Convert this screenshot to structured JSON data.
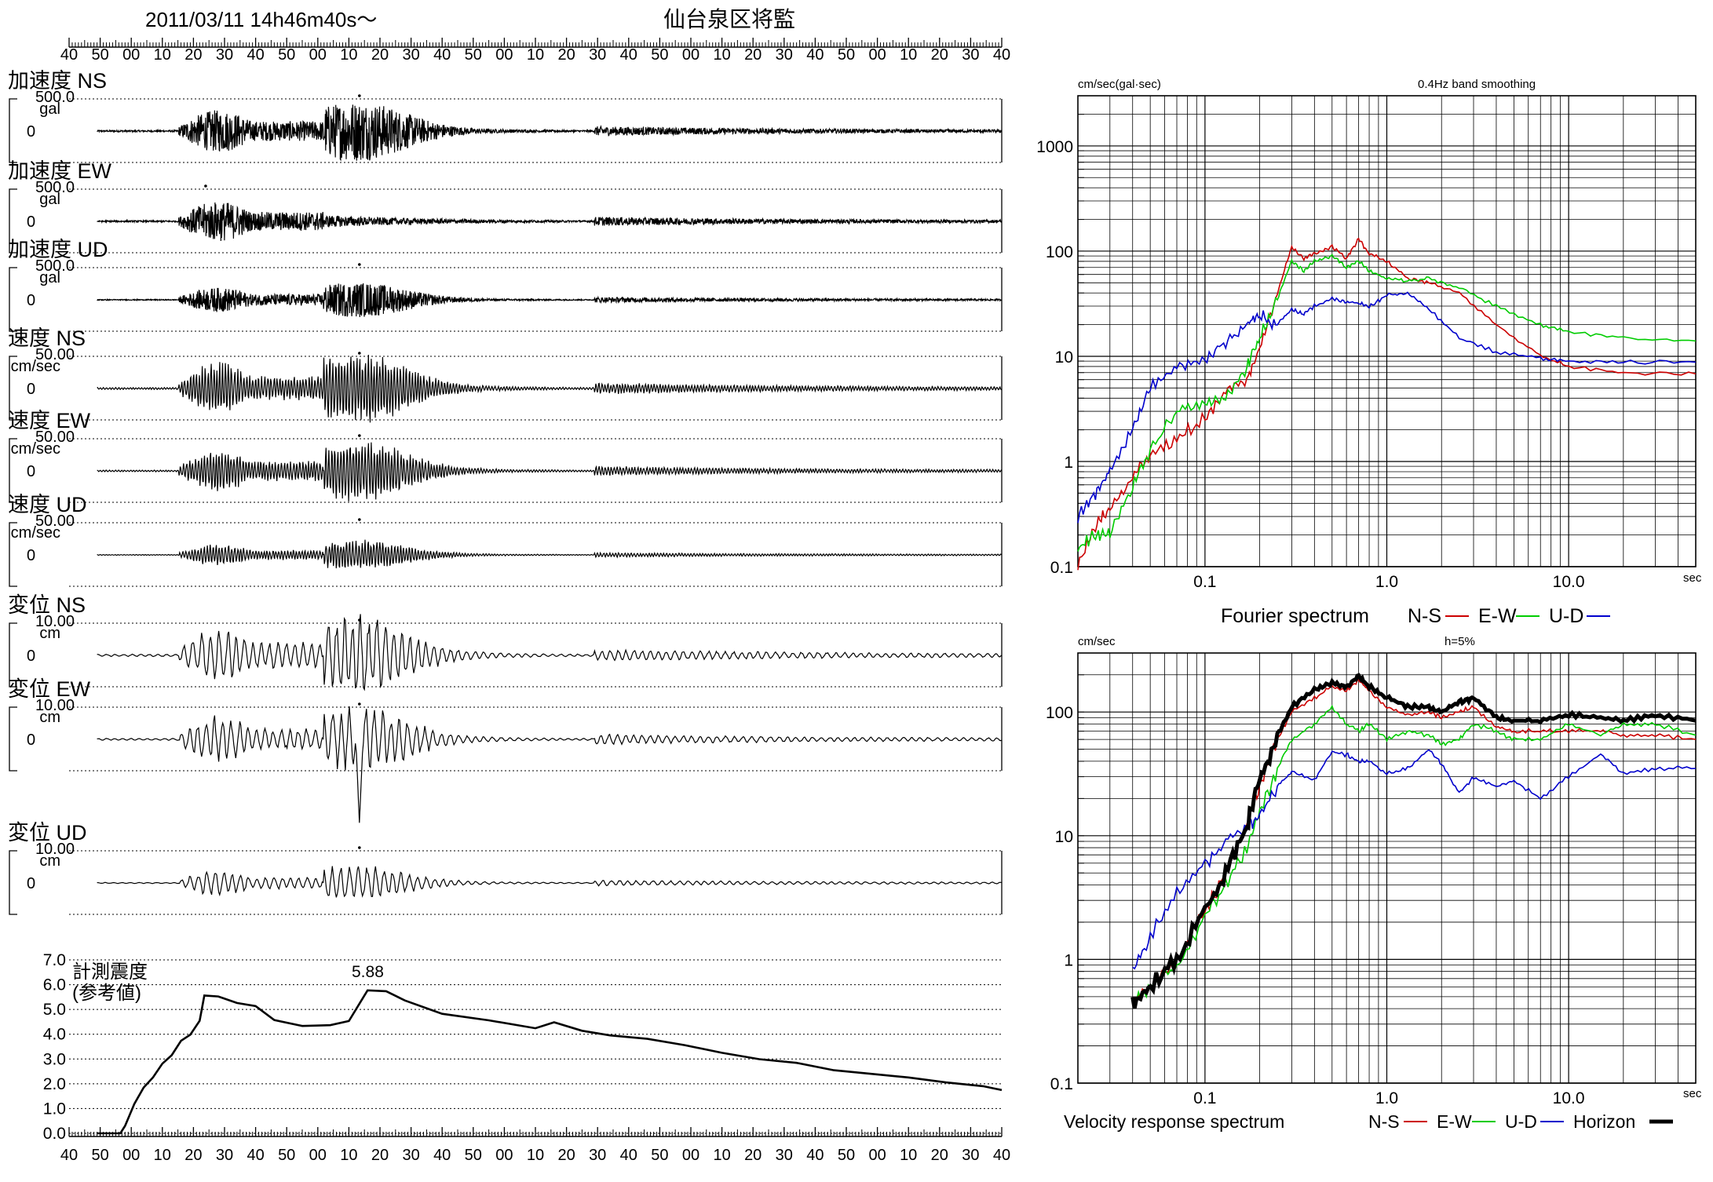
{
  "header": {
    "datetime": "2011/03/11  14h46m40s〜",
    "station": "仙台泉区将監"
  },
  "time_ruler": {
    "labels": [
      "40",
      "50",
      "00",
      "10",
      "20",
      "30",
      "40",
      "50",
      "00",
      "10",
      "20",
      "30",
      "40",
      "50",
      "00",
      "10",
      "20",
      "30",
      "40",
      "50",
      "00",
      "10",
      "20",
      "30",
      "40",
      "50",
      "00",
      "10",
      "20",
      "30",
      "40"
    ]
  },
  "traces": [
    {
      "label": "加速度 NS",
      "scale": "500.0",
      "unit": "gal",
      "zero": "0",
      "amp": 0.95,
      "peak_at": 0.29,
      "pattern": "acc"
    },
    {
      "label": "加速度 EW",
      "scale": "500.0",
      "unit": "gal",
      "zero": "0",
      "amp": 0.9,
      "peak_at": 0.12,
      "pattern": "acc"
    },
    {
      "label": "加速度 UD",
      "scale": "500.0",
      "unit": "gal",
      "zero": "0",
      "amp": 0.55,
      "peak_at": 0.29,
      "pattern": "acc"
    },
    {
      "label": "速度 NS",
      "scale": "50.00",
      "unit": "cm/sec",
      "zero": "0",
      "amp": 1.1,
      "peak_at": 0.29,
      "pattern": "vel"
    },
    {
      "label": "速度 EW",
      "scale": "50.00",
      "unit": "cm/sec",
      "zero": "0",
      "amp": 0.9,
      "peak_at": 0.29,
      "pattern": "vel"
    },
    {
      "label": "速度 UD",
      "scale": "50.00",
      "unit": "cm/sec",
      "zero": "0",
      "amp": 0.45,
      "peak_at": 0.29,
      "pattern": "vel"
    },
    {
      "label": "変位 NS",
      "scale": "10.00",
      "unit": "cm",
      "zero": "0",
      "amp": 1.2,
      "peak_at": 0.29,
      "pattern": "disp"
    },
    {
      "label": "変位 EW",
      "scale": "10.00",
      "unit": "cm",
      "zero": "0",
      "amp": 1.0,
      "peak_at": 0.29,
      "pattern": "disp",
      "spike": -2.8
    },
    {
      "label": "変位 UD",
      "scale": "10.00",
      "unit": "cm",
      "zero": "0",
      "amp": 0.55,
      "peak_at": 0.29,
      "pattern": "disp"
    }
  ],
  "intensity": {
    "title_line1": "計測震度",
    "title_line2": "(参考値)",
    "peak_label": "5.88",
    "y_ticks": [
      "7.0",
      "6.0",
      "5.0",
      "4.0",
      "3.0",
      "2.0",
      "1.0",
      "0.0"
    ],
    "ylim": [
      0,
      7
    ]
  },
  "chart_data": [
    {
      "type": "line",
      "title": "0.4Hz band smoothing",
      "ylabel": "cm/sec(gal·sec)",
      "xlabel": "sec",
      "x_scale": "log",
      "y_scale": "log",
      "xlim": [
        0.02,
        50
      ],
      "ylim": [
        0.1,
        3000
      ],
      "x_tick_labels": [
        "0.1",
        "1.0",
        "10.0"
      ],
      "y_tick_labels": [
        "1000",
        "100",
        "10",
        "1",
        "0.1"
      ],
      "caption": "Fourier spectrum",
      "legend": [
        "N-S",
        "E-W",
        "U-D"
      ],
      "series": [
        {
          "name": "N-S",
          "color": "#cc0000",
          "x": [
            0.02,
            0.025,
            0.03,
            0.04,
            0.05,
            0.07,
            0.1,
            0.13,
            0.17,
            0.2,
            0.25,
            0.3,
            0.35,
            0.4,
            0.5,
            0.6,
            0.7,
            0.8,
            1.0,
            1.3,
            1.7,
            2.5,
            4,
            7,
            10,
            20,
            50
          ],
          "y": [
            0.1,
            0.25,
            0.35,
            0.7,
            1.2,
            1.6,
            2.6,
            4.5,
            6,
            12,
            40,
            110,
            85,
            95,
            110,
            85,
            130,
            95,
            80,
            55,
            50,
            40,
            20,
            10,
            8,
            7,
            6.8
          ]
        },
        {
          "name": "E-W",
          "color": "#00cc00",
          "x": [
            0.02,
            0.025,
            0.03,
            0.04,
            0.05,
            0.07,
            0.1,
            0.13,
            0.17,
            0.2,
            0.25,
            0.3,
            0.35,
            0.4,
            0.5,
            0.6,
            0.7,
            0.8,
            1.0,
            1.3,
            1.7,
            2.5,
            4,
            7,
            10,
            20,
            50
          ],
          "y": [
            0.15,
            0.2,
            0.2,
            0.6,
            1.3,
            3,
            3.5,
            4,
            8,
            15,
            35,
            80,
            65,
            80,
            90,
            70,
            80,
            65,
            55,
            52,
            55,
            45,
            30,
            20,
            17,
            15,
            14
          ]
        },
        {
          "name": "U-D",
          "color": "#0000cc",
          "x": [
            0.02,
            0.025,
            0.03,
            0.04,
            0.05,
            0.07,
            0.1,
            0.13,
            0.17,
            0.2,
            0.25,
            0.3,
            0.35,
            0.4,
            0.5,
            0.6,
            0.7,
            0.8,
            1.0,
            1.3,
            1.7,
            2.5,
            4,
            7,
            10,
            20,
            50
          ],
          "y": [
            0.3,
            0.5,
            0.8,
            2,
            5,
            8,
            9,
            14,
            20,
            25,
            20,
            28,
            25,
            30,
            35,
            33,
            32,
            30,
            38,
            40,
            28,
            15,
            11,
            9.5,
            9,
            8.8,
            8.8
          ]
        }
      ]
    },
    {
      "type": "line",
      "title": "h=5%",
      "ylabel": "cm/sec",
      "xlabel": "sec",
      "x_scale": "log",
      "y_scale": "log",
      "xlim": [
        0.02,
        50
      ],
      "ylim": [
        0.1,
        300
      ],
      "x_tick_labels": [
        "0.1",
        "1.0",
        "10.0"
      ],
      "y_tick_labels": [
        "100",
        "10",
        "1",
        "0.1"
      ],
      "caption": "Velocity response spectrum",
      "legend": [
        "N-S",
        "E-W",
        "U-D",
        "Horizon"
      ],
      "series": [
        {
          "name": "N-S",
          "color": "#cc0000",
          "x": [
            0.04,
            0.05,
            0.07,
            0.1,
            0.13,
            0.17,
            0.2,
            0.25,
            0.3,
            0.4,
            0.5,
            0.6,
            0.7,
            0.8,
            1.0,
            1.3,
            1.7,
            2.0,
            2.5,
            3,
            4,
            5,
            7,
            10,
            15,
            20,
            30,
            50
          ],
          "y": [
            0.45,
            0.6,
            1,
            2.5,
            5,
            12,
            25,
            60,
            100,
            130,
            160,
            150,
            180,
            150,
            110,
            95,
            100,
            90,
            100,
            110,
            75,
            70,
            70,
            70,
            70,
            65,
            65,
            60
          ]
        },
        {
          "name": "E-W",
          "color": "#00cc00",
          "x": [
            0.04,
            0.05,
            0.07,
            0.1,
            0.13,
            0.17,
            0.2,
            0.25,
            0.3,
            0.4,
            0.5,
            0.6,
            0.7,
            0.8,
            1.0,
            1.3,
            1.7,
            2.0,
            2.5,
            3,
            4,
            5,
            7,
            10,
            15,
            20,
            30,
            50
          ],
          "y": [
            0.45,
            0.6,
            0.9,
            2.2,
            4,
            8,
            15,
            35,
            60,
            80,
            110,
            80,
            70,
            80,
            60,
            70,
            65,
            55,
            60,
            80,
            70,
            60,
            60,
            80,
            65,
            80,
            80,
            65
          ]
        },
        {
          "name": "U-D",
          "color": "#0000cc",
          "x": [
            0.04,
            0.05,
            0.07,
            0.1,
            0.13,
            0.17,
            0.2,
            0.25,
            0.3,
            0.4,
            0.5,
            0.6,
            0.7,
            0.8,
            1.0,
            1.3,
            1.7,
            2.0,
            2.5,
            3,
            4,
            5,
            7,
            10,
            15,
            20,
            30,
            50
          ],
          "y": [
            0.8,
            1.5,
            3.5,
            6,
            9,
            12,
            15,
            25,
            33,
            28,
            48,
            45,
            40,
            40,
            32,
            35,
            50,
            38,
            22,
            30,
            25,
            28,
            20,
            30,
            45,
            32,
            35,
            35
          ]
        },
        {
          "name": "Horizon",
          "color": "#000000",
          "x": [
            0.04,
            0.05,
            0.07,
            0.1,
            0.13,
            0.17,
            0.2,
            0.25,
            0.3,
            0.4,
            0.5,
            0.6,
            0.7,
            0.8,
            1.0,
            1.3,
            1.7,
            2.0,
            2.5,
            3,
            4,
            5,
            7,
            10,
            15,
            20,
            30,
            50
          ],
          "y": [
            0.45,
            0.6,
            1,
            2.5,
            5,
            12,
            28,
            65,
            110,
            150,
            170,
            160,
            195,
            160,
            130,
            110,
            110,
            100,
            120,
            130,
            90,
            85,
            85,
            95,
            90,
            85,
            95,
            85
          ]
        }
      ]
    }
  ]
}
